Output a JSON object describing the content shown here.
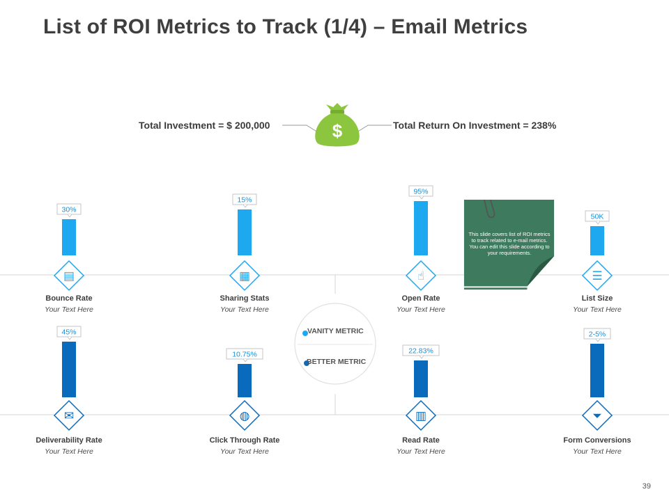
{
  "slide": {
    "title": "List of ROI Metrics to Track (1/4) – Email Metrics",
    "page_number": "39"
  },
  "investment": {
    "total_investment": "Total Investment = $ 200,000",
    "total_return": "Total Return On Investment = 238%"
  },
  "legend": {
    "vanity": "VANITY METRIC",
    "better": "BETTER METRIC"
  },
  "note": {
    "text": "This slide covers list of ROI metrics to track related to e-mail metrics. You can edit this slide according to your requirements."
  },
  "colors": {
    "vanity": "#1ea8ef",
    "better": "#0a6bbd",
    "money_bag": "#8cc63f",
    "note_bg": "#3d7a5e",
    "axis": "#d6d6d6"
  },
  "chart_data": {
    "type": "bar",
    "title": "List of ROI Metrics to Track (1/4) – Email Metrics",
    "series": [
      {
        "name": "VANITY METRIC",
        "categories": [
          "Bounce Rate",
          "Sharing Stats",
          "Open Rate",
          "List Size"
        ],
        "labels": [
          "30%",
          "15%",
          "95%",
          "50K"
        ],
        "subtexts": [
          "Your Text Here",
          "Your Text Here",
          "Your Text Here",
          "Your Text Here"
        ],
        "icons": [
          "browser-icon",
          "share-devices-icon",
          "touch-icon",
          "list-icon"
        ],
        "relative_heights": [
          0.52,
          0.66,
          0.78,
          0.42
        ]
      },
      {
        "name": "BETTER METRIC",
        "categories": [
          "Deliverability Rate",
          "Click Through Rate",
          "Read Rate",
          "Form Conversions"
        ],
        "labels": [
          "45%",
          "10.75%",
          "22.83%",
          "2-5%"
        ],
        "subtexts": [
          "Your Text Here",
          "Your Text Here",
          "Your Text Here",
          "Your Text Here"
        ],
        "icons": [
          "envelope-chart-icon",
          "hand-globe-icon",
          "open-book-icon",
          "funnel-money-icon"
        ],
        "relative_heights": [
          0.8,
          0.48,
          0.53,
          0.77
        ]
      }
    ]
  }
}
